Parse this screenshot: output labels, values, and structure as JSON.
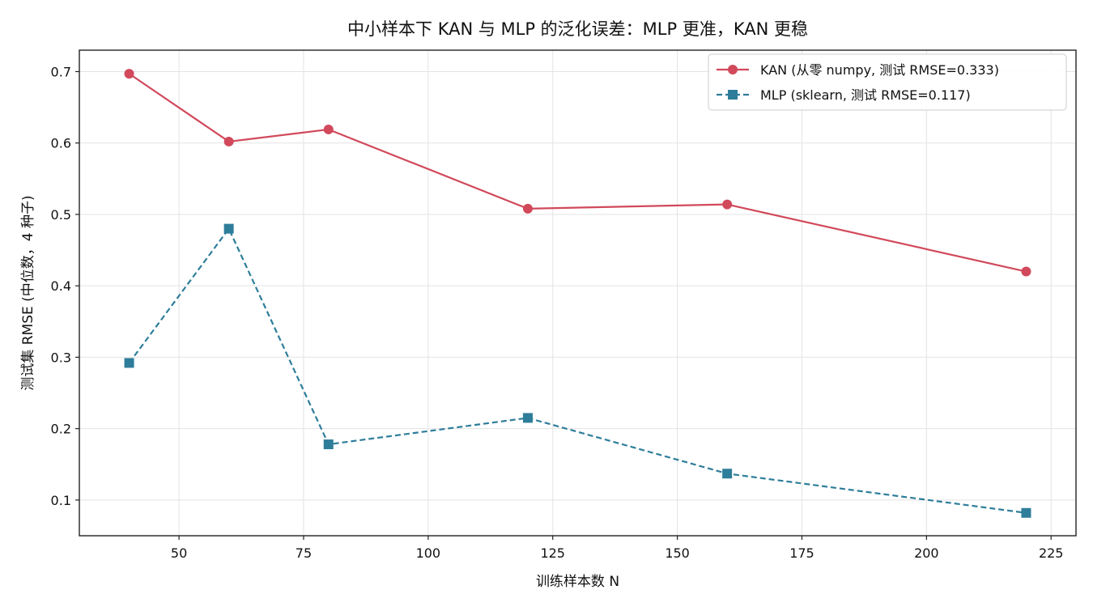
{
  "chart_data": {
    "type": "line",
    "title": "中小样本下 KAN 与 MLP 的泛化误差：MLP 更准，KAN 更稳",
    "xlabel": "训练样本数 N",
    "ylabel": "测试集 RMSE (中位数，4 种子)",
    "xlim": [
      30,
      230
    ],
    "ylim": [
      0.05,
      0.73
    ],
    "xticks": [
      50,
      75,
      100,
      125,
      150,
      175,
      200,
      225
    ],
    "xtick_labels": [
      "50",
      "75",
      "100",
      "125",
      "150",
      "175",
      "200",
      "225"
    ],
    "yticks": [
      0.1,
      0.2,
      0.3,
      0.4,
      0.5,
      0.6,
      0.7
    ],
    "ytick_labels": [
      "0.1",
      "0.2",
      "0.3",
      "0.4",
      "0.5",
      "0.6",
      "0.7"
    ],
    "grid": true,
    "legend_position": "top-right",
    "x": [
      40,
      60,
      80,
      120,
      160,
      220
    ],
    "series": [
      {
        "name": "KAN (从零 numpy, 测试 RMSE=0.333)",
        "values": [
          0.697,
          0.602,
          0.619,
          0.508,
          0.514,
          0.42
        ],
        "color": "#d1495b",
        "marker": "circle",
        "line_style": "solid"
      },
      {
        "name": "MLP (sklearn, 测试 RMSE=0.117)",
        "values": [
          0.292,
          0.48,
          0.178,
          0.215,
          0.137,
          0.082
        ],
        "color": "#2e7d9a",
        "marker": "square",
        "line_style": "dashed"
      }
    ]
  }
}
